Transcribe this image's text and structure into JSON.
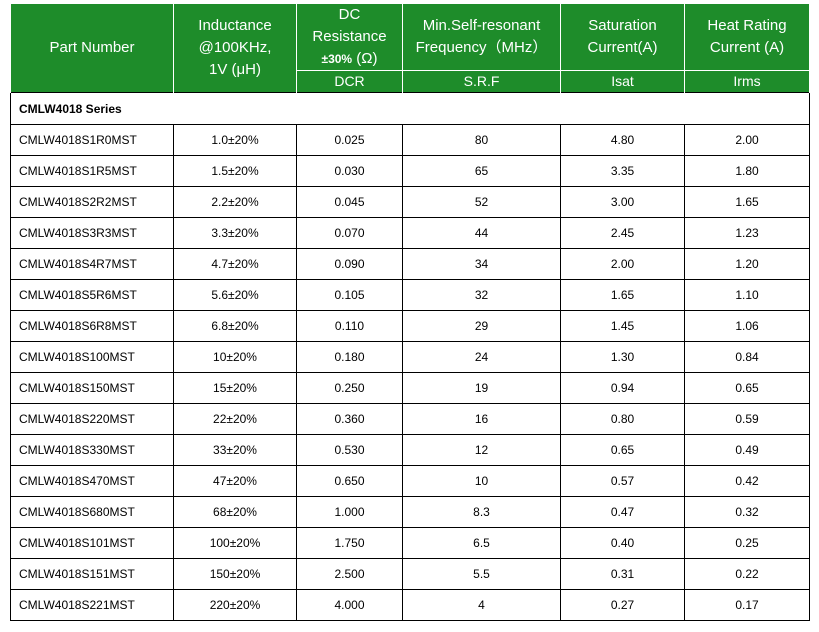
{
  "headers": {
    "part_number": "Part Number",
    "inductance": [
      "Inductance",
      "@100KHz,",
      "1V (μH)"
    ],
    "dcr_title": [
      "DC",
      "Resistance"
    ],
    "dcr_tol": "±30%",
    "dcr_unit": " (Ω)",
    "srf_title": [
      "Min.Self-resonant",
      "Frequency（MHz）"
    ],
    "sat_title": [
      "Saturation",
      "Current(A)"
    ],
    "heat_title": [
      "Heat Rating",
      "Current (A)"
    ],
    "sub": {
      "dcr": "DCR",
      "srf": "S.R.F",
      "isat": "Isat",
      "irms": "Irms"
    }
  },
  "series_label": "CMLW4018 Series",
  "rows": [
    {
      "part": "CMLW4018S1R0MST",
      "inductance": "1.0±20%",
      "dcr": "0.025",
      "srf": "80",
      "isat": "4.80",
      "irms": "2.00"
    },
    {
      "part": "CMLW4018S1R5MST",
      "inductance": "1.5±20%",
      "dcr": "0.030",
      "srf": "65",
      "isat": "3.35",
      "irms": "1.80"
    },
    {
      "part": "CMLW4018S2R2MST",
      "inductance": "2.2±20%",
      "dcr": "0.045",
      "srf": "52",
      "isat": "3.00",
      "irms": "1.65"
    },
    {
      "part": "CMLW4018S3R3MST",
      "inductance": "3.3±20%",
      "dcr": "0.070",
      "srf": "44",
      "isat": "2.45",
      "irms": "1.23"
    },
    {
      "part": "CMLW4018S4R7MST",
      "inductance": "4.7±20%",
      "dcr": "0.090",
      "srf": "34",
      "isat": "2.00",
      "irms": "1.20"
    },
    {
      "part": "CMLW4018S5R6MST",
      "inductance": "5.6±20%",
      "dcr": "0.105",
      "srf": "32",
      "isat": "1.65",
      "irms": "1.10"
    },
    {
      "part": "CMLW4018S6R8MST",
      "inductance": "6.8±20%",
      "dcr": "0.110",
      "srf": "29",
      "isat": "1.45",
      "irms": "1.06"
    },
    {
      "part": "CMLW4018S100MST",
      "inductance": "10±20%",
      "dcr": "0.180",
      "srf": "24",
      "isat": "1.30",
      "irms": "0.84"
    },
    {
      "part": "CMLW4018S150MST",
      "inductance": "15±20%",
      "dcr": "0.250",
      "srf": "19",
      "isat": "0.94",
      "irms": "0.65"
    },
    {
      "part": "CMLW4018S220MST",
      "inductance": "22±20%",
      "dcr": "0.360",
      "srf": "16",
      "isat": "0.80",
      "irms": "0.59"
    },
    {
      "part": "CMLW4018S330MST",
      "inductance": "33±20%",
      "dcr": "0.530",
      "srf": "12",
      "isat": "0.65",
      "irms": "0.49"
    },
    {
      "part": "CMLW4018S470MST",
      "inductance": "47±20%",
      "dcr": "0.650",
      "srf": "10",
      "isat": "0.57",
      "irms": "0.42"
    },
    {
      "part": "CMLW4018S680MST",
      "inductance": "68±20%",
      "dcr": "1.000",
      "srf": "8.3",
      "isat": "0.47",
      "irms": "0.32"
    },
    {
      "part": "CMLW4018S101MST",
      "inductance": "100±20%",
      "dcr": "1.750",
      "srf": "6.5",
      "isat": "0.40",
      "irms": "0.25"
    },
    {
      "part": "CMLW4018S151MST",
      "inductance": "150±20%",
      "dcr": "2.500",
      "srf": "5.5",
      "isat": "0.31",
      "irms": "0.22"
    },
    {
      "part": "CMLW4018S221MST",
      "inductance": "220±20%",
      "dcr": "4.000",
      "srf": "4",
      "isat": "0.27",
      "irms": "0.17"
    }
  ]
}
